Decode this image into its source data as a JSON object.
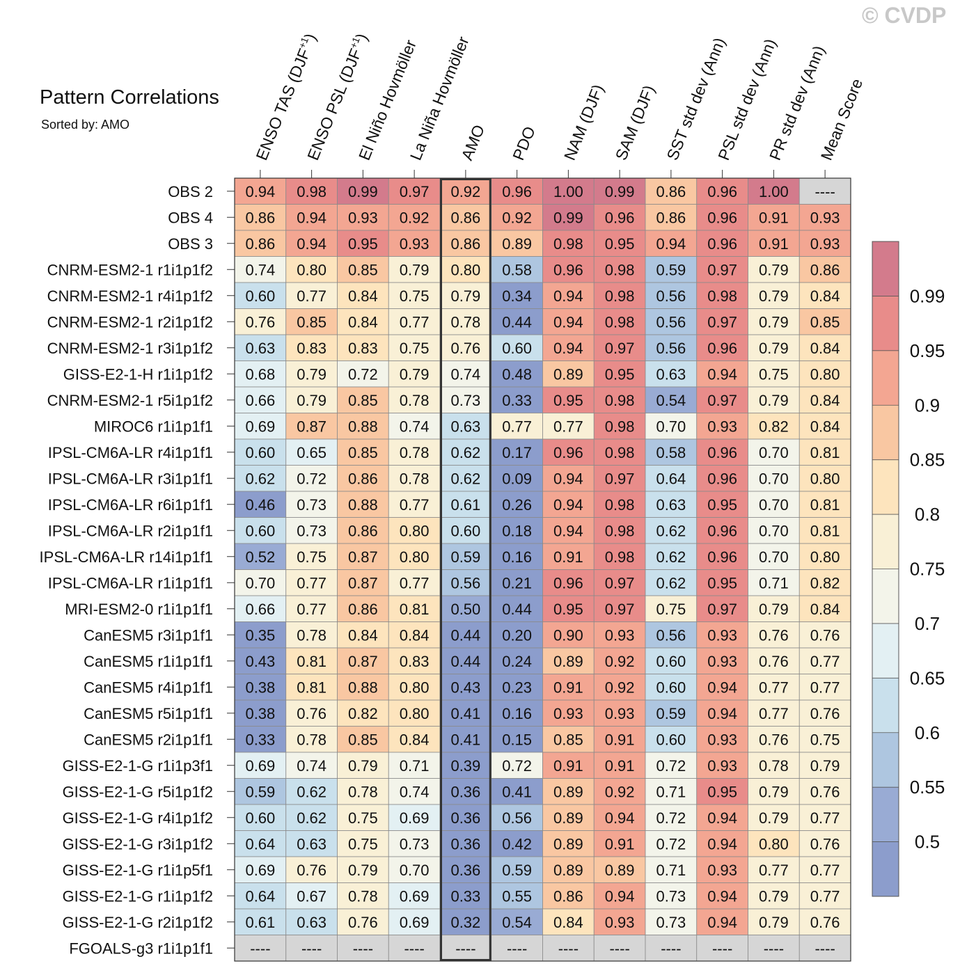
{
  "watermark": "© CVDP",
  "chart_data": {
    "type": "heatmap",
    "title": "Pattern Correlations",
    "subtitle": "Sorted by: AMO",
    "highlight_column": "AMO",
    "columns": [
      "ENSO TAS (DJF+1)",
      "ENSO PSL (DJF+1)",
      "El Niño Hovmöller",
      "La Niña Hovmöller",
      "AMO",
      "PDO",
      "NAM (DJF)",
      "SAM (DJF)",
      "SST std dev (Ann)",
      "PSL std dev (Ann)",
      "PR std dev (Ann)",
      "Mean Score"
    ],
    "rows": [
      "OBS 2",
      "OBS 4",
      "OBS 3",
      "CNRM-ESM2-1 r1i1p1f2",
      "CNRM-ESM2-1 r4i1p1f2",
      "CNRM-ESM2-1 r2i1p1f2",
      "CNRM-ESM2-1 r3i1p1f2",
      "GISS-E2-1-H r1i1p1f2",
      "CNRM-ESM2-1 r5i1p1f2",
      "MIROC6 r1i1p1f1",
      "IPSL-CM6A-LR r4i1p1f1",
      "IPSL-CM6A-LR r3i1p1f1",
      "IPSL-CM6A-LR r6i1p1f1",
      "IPSL-CM6A-LR r2i1p1f1",
      "IPSL-CM6A-LR r14i1p1f1",
      "IPSL-CM6A-LR r1i1p1f1",
      "MRI-ESM2-0 r1i1p1f1",
      "CanESM5 r3i1p1f1",
      "CanESM5 r1i1p1f1",
      "CanESM5 r4i1p1f1",
      "CanESM5 r5i1p1f1",
      "CanESM5 r2i1p1f1",
      "GISS-E2-1-G r1i1p3f1",
      "GISS-E2-1-G r5i1p1f2",
      "GISS-E2-1-G r4i1p1f2",
      "GISS-E2-1-G r3i1p1f2",
      "GISS-E2-1-G r1i1p5f1",
      "GISS-E2-1-G r1i1p1f2",
      "GISS-E2-1-G r2i1p1f2",
      "FGOALS-g3 r1i1p1f1"
    ],
    "values": [
      [
        "0.94",
        "0.98",
        "0.99",
        "0.97",
        "0.92",
        "0.96",
        "1.00",
        "0.99",
        "0.86",
        "0.96",
        "1.00",
        "----"
      ],
      [
        "0.86",
        "0.94",
        "0.93",
        "0.92",
        "0.86",
        "0.92",
        "0.99",
        "0.96",
        "0.86",
        "0.96",
        "0.91",
        "0.93"
      ],
      [
        "0.86",
        "0.94",
        "0.95",
        "0.93",
        "0.86",
        "0.89",
        "0.98",
        "0.95",
        "0.94",
        "0.96",
        "0.91",
        "0.93"
      ],
      [
        "0.74",
        "0.80",
        "0.85",
        "0.79",
        "0.80",
        "0.58",
        "0.96",
        "0.98",
        "0.59",
        "0.97",
        "0.79",
        "0.86"
      ],
      [
        "0.60",
        "0.77",
        "0.84",
        "0.75",
        "0.79",
        "0.34",
        "0.94",
        "0.98",
        "0.56",
        "0.98",
        "0.79",
        "0.84"
      ],
      [
        "0.76",
        "0.85",
        "0.84",
        "0.77",
        "0.78",
        "0.44",
        "0.94",
        "0.98",
        "0.56",
        "0.97",
        "0.79",
        "0.85"
      ],
      [
        "0.63",
        "0.83",
        "0.83",
        "0.75",
        "0.76",
        "0.60",
        "0.94",
        "0.97",
        "0.56",
        "0.96",
        "0.79",
        "0.84"
      ],
      [
        "0.68",
        "0.79",
        "0.72",
        "0.79",
        "0.74",
        "0.48",
        "0.89",
        "0.95",
        "0.63",
        "0.94",
        "0.75",
        "0.80"
      ],
      [
        "0.66",
        "0.79",
        "0.85",
        "0.78",
        "0.73",
        "0.33",
        "0.95",
        "0.98",
        "0.54",
        "0.97",
        "0.79",
        "0.84"
      ],
      [
        "0.69",
        "0.87",
        "0.88",
        "0.74",
        "0.63",
        "0.77",
        "0.77",
        "0.98",
        "0.70",
        "0.93",
        "0.82",
        "0.84"
      ],
      [
        "0.60",
        "0.65",
        "0.85",
        "0.78",
        "0.62",
        "0.17",
        "0.96",
        "0.98",
        "0.58",
        "0.96",
        "0.70",
        "0.81"
      ],
      [
        "0.62",
        "0.72",
        "0.86",
        "0.78",
        "0.62",
        "0.09",
        "0.94",
        "0.97",
        "0.64",
        "0.96",
        "0.70",
        "0.80"
      ],
      [
        "0.46",
        "0.73",
        "0.88",
        "0.77",
        "0.61",
        "0.26",
        "0.94",
        "0.98",
        "0.63",
        "0.95",
        "0.70",
        "0.81"
      ],
      [
        "0.60",
        "0.73",
        "0.86",
        "0.80",
        "0.60",
        "0.18",
        "0.94",
        "0.98",
        "0.62",
        "0.96",
        "0.70",
        "0.81"
      ],
      [
        "0.52",
        "0.75",
        "0.87",
        "0.80",
        "0.59",
        "0.16",
        "0.91",
        "0.98",
        "0.62",
        "0.96",
        "0.70",
        "0.80"
      ],
      [
        "0.70",
        "0.77",
        "0.87",
        "0.77",
        "0.56",
        "0.21",
        "0.96",
        "0.97",
        "0.62",
        "0.95",
        "0.71",
        "0.82"
      ],
      [
        "0.66",
        "0.77",
        "0.86",
        "0.81",
        "0.50",
        "0.44",
        "0.95",
        "0.97",
        "0.75",
        "0.97",
        "0.79",
        "0.84"
      ],
      [
        "0.35",
        "0.78",
        "0.84",
        "0.84",
        "0.44",
        "0.20",
        "0.90",
        "0.93",
        "0.56",
        "0.93",
        "0.76",
        "0.76"
      ],
      [
        "0.43",
        "0.81",
        "0.87",
        "0.83",
        "0.44",
        "0.24",
        "0.89",
        "0.92",
        "0.60",
        "0.93",
        "0.76",
        "0.77"
      ],
      [
        "0.38",
        "0.81",
        "0.88",
        "0.80",
        "0.43",
        "0.23",
        "0.91",
        "0.92",
        "0.60",
        "0.94",
        "0.77",
        "0.77"
      ],
      [
        "0.38",
        "0.76",
        "0.82",
        "0.80",
        "0.41",
        "0.16",
        "0.93",
        "0.93",
        "0.59",
        "0.94",
        "0.77",
        "0.76"
      ],
      [
        "0.33",
        "0.78",
        "0.85",
        "0.84",
        "0.41",
        "0.15",
        "0.85",
        "0.91",
        "0.60",
        "0.93",
        "0.76",
        "0.75"
      ],
      [
        "0.69",
        "0.74",
        "0.79",
        "0.71",
        "0.39",
        "0.72",
        "0.91",
        "0.91",
        "0.72",
        "0.93",
        "0.78",
        "0.79"
      ],
      [
        "0.59",
        "0.62",
        "0.78",
        "0.74",
        "0.36",
        "0.41",
        "0.89",
        "0.92",
        "0.71",
        "0.95",
        "0.79",
        "0.76"
      ],
      [
        "0.60",
        "0.62",
        "0.75",
        "0.69",
        "0.36",
        "0.56",
        "0.89",
        "0.94",
        "0.72",
        "0.94",
        "0.79",
        "0.77"
      ],
      [
        "0.64",
        "0.63",
        "0.75",
        "0.73",
        "0.36",
        "0.42",
        "0.89",
        "0.91",
        "0.72",
        "0.94",
        "0.80",
        "0.76"
      ],
      [
        "0.69",
        "0.76",
        "0.79",
        "0.70",
        "0.36",
        "0.59",
        "0.89",
        "0.89",
        "0.71",
        "0.93",
        "0.77",
        "0.77"
      ],
      [
        "0.64",
        "0.67",
        "0.78",
        "0.69",
        "0.33",
        "0.55",
        "0.86",
        "0.94",
        "0.73",
        "0.94",
        "0.79",
        "0.77"
      ],
      [
        "0.61",
        "0.63",
        "0.76",
        "0.69",
        "0.32",
        "0.54",
        "0.84",
        "0.93",
        "0.73",
        "0.94",
        "0.79",
        "0.76"
      ],
      [
        "----",
        "----",
        "----",
        "----",
        "----",
        "----",
        "----",
        "----",
        "----",
        "----",
        "----",
        "----"
      ]
    ],
    "colorbar": {
      "labels": [
        "0.99",
        "0.95",
        "0.9",
        "0.85",
        "0.8",
        "0.75",
        "0.7",
        "0.65",
        "0.6",
        "0.55",
        "0.5"
      ],
      "colors": [
        "#d37b8c",
        "#e88c8a",
        "#f3a692",
        "#f9c7a2",
        "#fde4bd",
        "#f9f0d6",
        "#f3f4ea",
        "#e3f0f3",
        "#c9e0ec",
        "#aec6e0",
        "#99abd4",
        "#8c9dcc"
      ],
      "missing_color": "#d6d6d6"
    }
  }
}
